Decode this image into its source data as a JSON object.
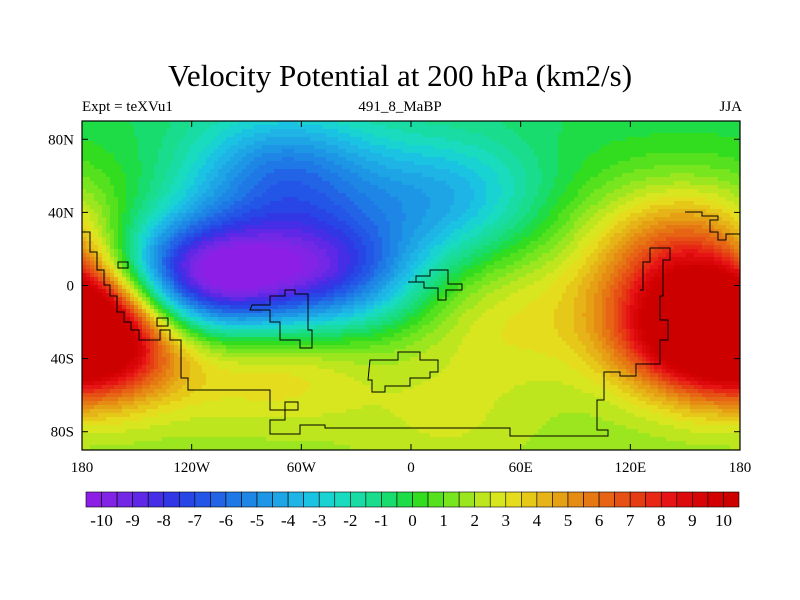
{
  "chart_data": {
    "type": "heatmap",
    "title": "Velocity Potential at 200 hPa (km2/s)",
    "subtitle_left": "Expt = teXVu1",
    "subtitle_center": "491_8_MaBP",
    "subtitle_right": "JJA",
    "x_ticks": [
      {
        "value": -180,
        "label": "180"
      },
      {
        "value": -120,
        "label": "120W"
      },
      {
        "value": -60,
        "label": "60W"
      },
      {
        "value": 0,
        "label": "0"
      },
      {
        "value": 60,
        "label": "60E"
      },
      {
        "value": 120,
        "label": "120E"
      },
      {
        "value": 180,
        "label": "180"
      }
    ],
    "y_ticks": [
      {
        "value": 80,
        "label": "80N"
      },
      {
        "value": 40,
        "label": "40N"
      },
      {
        "value": 0,
        "label": "0"
      },
      {
        "value": -40,
        "label": "40S"
      },
      {
        "value": -80,
        "label": "80S"
      }
    ],
    "xlim": [
      -180,
      180
    ],
    "ylim": [
      -90,
      90
    ],
    "colorbar": {
      "min": -10.5,
      "max": 10.5,
      "step": 0.5,
      "labels": [
        "-10",
        "-9",
        "-8",
        "-7",
        "-6",
        "-5",
        "-4",
        "-3",
        "-2",
        "-1",
        "0",
        "1",
        "2",
        "3",
        "4",
        "5",
        "6",
        "7",
        "8",
        "9",
        "10"
      ],
      "colors": [
        "#8c1ee6",
        "#8223e6",
        "#7328e6",
        "#5f28e6",
        "#462de6",
        "#3237e6",
        "#2846e6",
        "#2355e6",
        "#2364e6",
        "#1e78e6",
        "#1e87e6",
        "#1e96e6",
        "#1ea5e6",
        "#1eb4e6",
        "#19c3e1",
        "#19d2d2",
        "#19dcbe",
        "#19dca5",
        "#19dc8c",
        "#19dc6e",
        "#1edc46",
        "#32dc1e",
        "#55e11e",
        "#78e61e",
        "#9be61e",
        "#bee61e",
        "#d7e61e",
        "#e6dc1e",
        "#e6c819",
        "#e6b419",
        "#e6a014",
        "#e68c14",
        "#e67814",
        "#e66414",
        "#e65014",
        "#e63c14",
        "#e62814",
        "#e61414",
        "#dc0a0a",
        "#d70505",
        "#d20000",
        "#cd0000"
      ]
    },
    "field_centers": [
      {
        "lon": -117,
        "lat": 3,
        "value": -10
      },
      {
        "lon": -45,
        "lat": 7,
        "value": -6.5
      },
      {
        "lon": -70,
        "lat": 60,
        "value": -4
      },
      {
        "lon": 20,
        "lat": 48,
        "value": -2.5
      },
      {
        "lon": 168,
        "lat": -20,
        "value": 10
      },
      {
        "lon": -178,
        "lat": -28,
        "value": 10
      },
      {
        "lon": 150,
        "lat": 22,
        "value": 6
      },
      {
        "lon": -75,
        "lat": -40,
        "value": 4
      },
      {
        "lon": 50,
        "lat": -20,
        "value": 3
      },
      {
        "lon": 20,
        "lat": -75,
        "value": 2.5
      }
    ]
  }
}
